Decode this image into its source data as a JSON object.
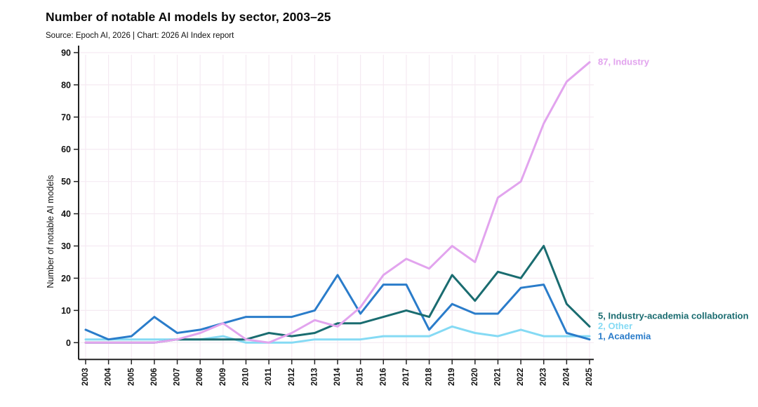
{
  "header": {
    "title": "Number of notable AI models by sector, 2003–25",
    "subtitle": "Source: Epoch AI, 2026 | Chart: 2026 AI Index report"
  },
  "chart_data": {
    "type": "line",
    "title": "Number of notable AI models by sector, 2003–25",
    "subtitle": "Source: Epoch AI, 2026 | Chart: 2026 AI Index report",
    "xlabel": "",
    "ylabel": "Number of notable AI models",
    "x": [
      "2003",
      "2004",
      "2005",
      "2006",
      "2007",
      "2008",
      "2009",
      "2010",
      "2011",
      "2012",
      "2013",
      "2014",
      "2015",
      "2016",
      "2017",
      "2018",
      "2019",
      "2020",
      "2021",
      "2022",
      "2023",
      "2024",
      "2025"
    ],
    "yticks": [
      0,
      10,
      20,
      30,
      40,
      50,
      60,
      70,
      80,
      90
    ],
    "ylim": [
      0,
      90
    ],
    "grid": true,
    "legend_position": "end-of-line labels at right",
    "series": [
      {
        "name": "Industry",
        "end_label": "87, Industry",
        "color": "#e2a4ee",
        "values": [
          0,
          0,
          0,
          0,
          1,
          3,
          6,
          1,
          0,
          3,
          7,
          5,
          11,
          21,
          26,
          23,
          30,
          25,
          45,
          50,
          68,
          81,
          87
        ]
      },
      {
        "name": "Industry-academia collaboration",
        "end_label": "5, Industry-academia collaboration",
        "color": "#1a6c70",
        "values": [
          0,
          0,
          0,
          0,
          1,
          1,
          1,
          1,
          3,
          2,
          3,
          6,
          6,
          8,
          10,
          8,
          21,
          13,
          22,
          20,
          30,
          12,
          5
        ]
      },
      {
        "name": "Other",
        "end_label": "2, Other",
        "color": "#85daf4",
        "values": [
          1,
          1,
          1,
          1,
          1,
          1,
          2,
          0,
          0,
          0,
          1,
          1,
          1,
          2,
          2,
          2,
          5,
          3,
          2,
          4,
          2,
          2,
          2
        ]
      },
      {
        "name": "Academia",
        "end_label": "1, Academia",
        "color": "#2a7cca",
        "values": [
          4,
          1,
          2,
          8,
          3,
          4,
          6,
          8,
          8,
          8,
          10,
          21,
          9,
          18,
          18,
          4,
          12,
          9,
          9,
          17,
          18,
          3,
          1
        ]
      }
    ]
  }
}
